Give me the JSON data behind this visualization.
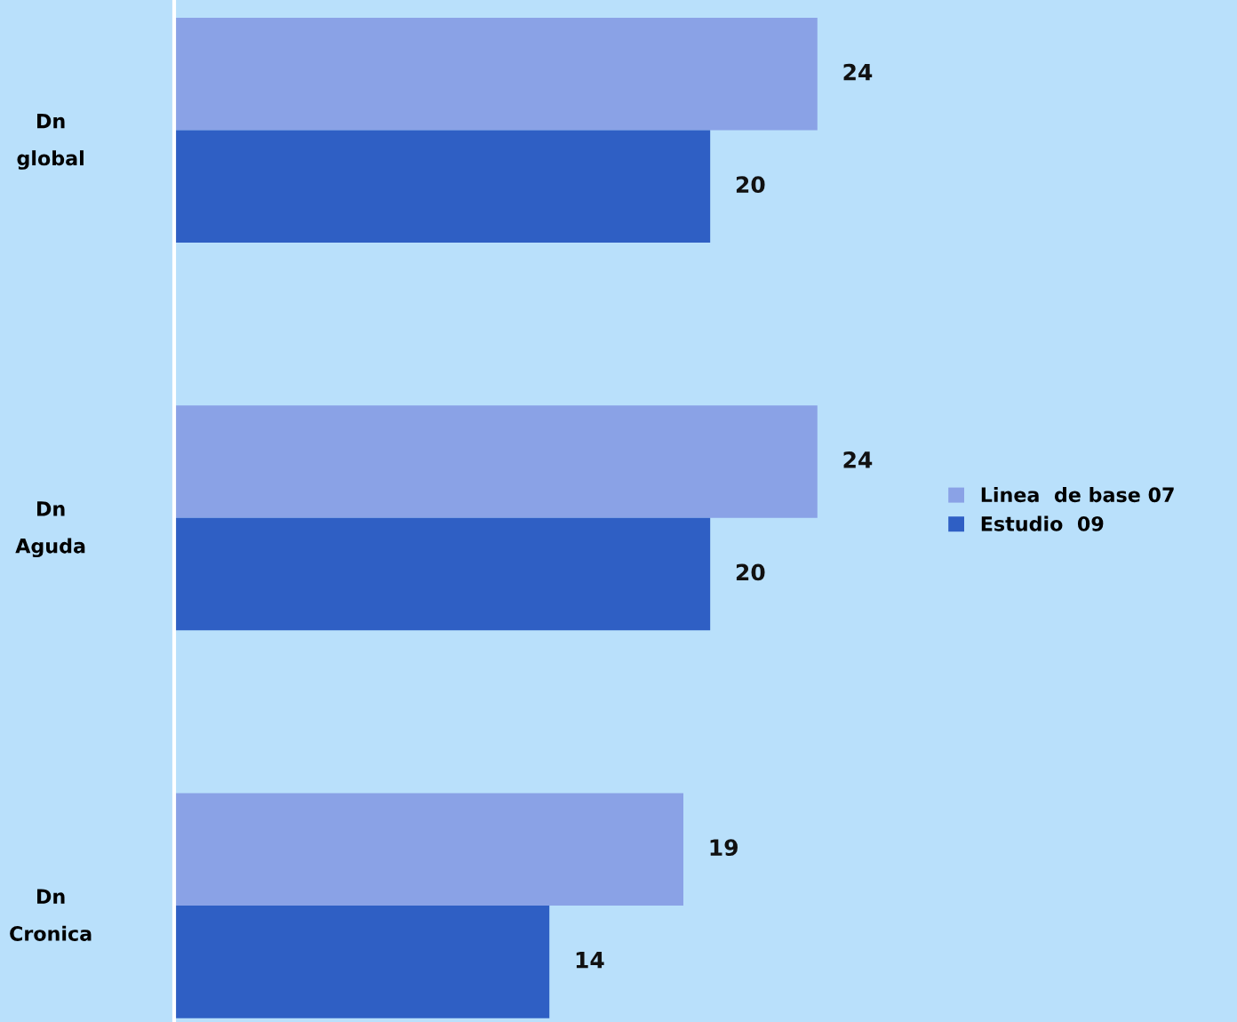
{
  "chart_data": {
    "type": "bar",
    "orientation": "horizontal",
    "categories": [
      "Dn\nglobal",
      "Dn\nAguda",
      "Dn\nCronica"
    ],
    "series": [
      {
        "name": "Linea  de base 07",
        "color": "#8aa2e6",
        "values": [
          24,
          24,
          19
        ]
      },
      {
        "name": "Estudio  09",
        "color": "#2f5fc4",
        "values": [
          20,
          20,
          14
        ]
      }
    ],
    "data_labels": true,
    "legend": "right",
    "grid": false,
    "tick_labels": "y"
  }
}
